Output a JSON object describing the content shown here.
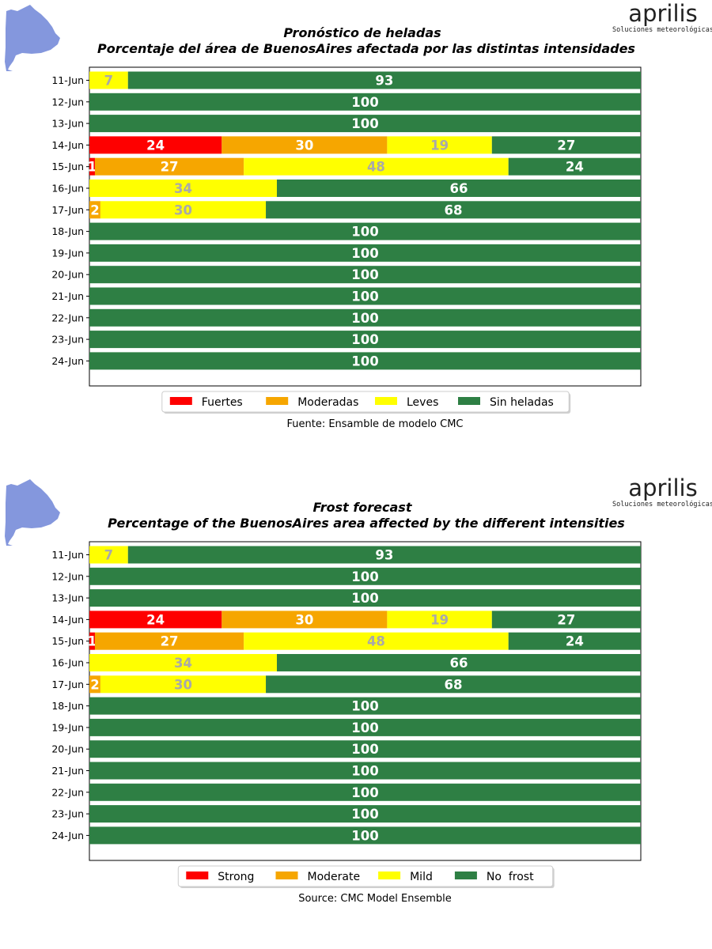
{
  "colors": {
    "strong": "#fe0000",
    "moderate": "#f6a600",
    "mild": "#ffff00",
    "none": "#2e7f44",
    "map": "#8497dd",
    "label_light": "#a9a9a9",
    "label_dark": "#ffffff"
  },
  "chart_data": [
    {
      "type": "bar",
      "orientation": "horizontal",
      "stacked": true,
      "logo": {
        "name": "aprilis",
        "tagline": "Soluciones meteorológicas"
      },
      "title": "Pronóstico de heladas",
      "subtitle": "Porcentaje del área de BuenosAires afectada por las distintas intensidades",
      "source": "Fuente: Ensamble de modelo CMC",
      "xlim": [
        0,
        100
      ],
      "legend_position": "bottom-center",
      "categories": [
        "11-Jun",
        "12-Jun",
        "13-Jun",
        "14-Jun",
        "15-Jun",
        "16-Jun",
        "17-Jun",
        "18-Jun",
        "19-Jun",
        "20-Jun",
        "21-Jun",
        "22-Jun",
        "23-Jun",
        "24-Jun"
      ],
      "series": [
        {
          "name": "Fuertes",
          "color_key": "strong",
          "values": [
            0,
            0,
            0,
            24,
            1,
            0,
            0,
            0,
            0,
            0,
            0,
            0,
            0,
            0
          ]
        },
        {
          "name": "Moderadas",
          "color_key": "moderate",
          "values": [
            0,
            0,
            0,
            30,
            27,
            0,
            2,
            0,
            0,
            0,
            0,
            0,
            0,
            0
          ]
        },
        {
          "name": "Leves",
          "color_key": "mild",
          "values": [
            7,
            0,
            0,
            19,
            48,
            34,
            30,
            0,
            0,
            0,
            0,
            0,
            0,
            0
          ]
        },
        {
          "name": "Sin heladas",
          "color_key": "none",
          "values": [
            93,
            100,
            100,
            27,
            24,
            66,
            68,
            100,
            100,
            100,
            100,
            100,
            100,
            100
          ]
        }
      ]
    },
    {
      "type": "bar",
      "orientation": "horizontal",
      "stacked": true,
      "logo": {
        "name": "aprilis",
        "tagline": "Soluciones meteorológicas"
      },
      "title": "Frost forecast",
      "subtitle": "Percentage of the BuenosAires area affected by the different intensities",
      "source": "Source: CMC Model Ensemble",
      "xlim": [
        0,
        100
      ],
      "legend_position": "bottom-center",
      "categories": [
        "11-Jun",
        "12-Jun",
        "13-Jun",
        "14-Jun",
        "15-Jun",
        "16-Jun",
        "17-Jun",
        "18-Jun",
        "19-Jun",
        "20-Jun",
        "21-Jun",
        "22-Jun",
        "23-Jun",
        "24-Jun"
      ],
      "series": [
        {
          "name": "Strong",
          "color_key": "strong",
          "values": [
            0,
            0,
            0,
            24,
            1,
            0,
            0,
            0,
            0,
            0,
            0,
            0,
            0,
            0
          ]
        },
        {
          "name": "Moderate",
          "color_key": "moderate",
          "values": [
            0,
            0,
            0,
            30,
            27,
            0,
            2,
            0,
            0,
            0,
            0,
            0,
            0,
            0
          ]
        },
        {
          "name": "Mild",
          "color_key": "mild",
          "values": [
            7,
            0,
            0,
            19,
            48,
            34,
            30,
            0,
            0,
            0,
            0,
            0,
            0,
            0
          ]
        },
        {
          "name": "No  frost",
          "color_key": "none",
          "values": [
            93,
            100,
            100,
            27,
            24,
            66,
            68,
            100,
            100,
            100,
            100,
            100,
            100,
            100
          ]
        }
      ]
    }
  ]
}
